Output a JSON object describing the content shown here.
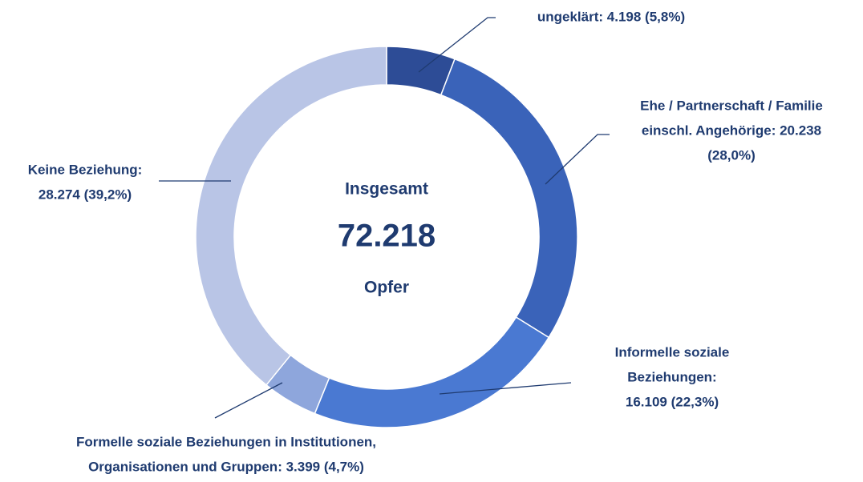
{
  "chart_data": {
    "type": "donut",
    "labels": [
      [
        "ungeklärt: 4.198 (5,8%)"
      ],
      [
        "Ehe / Partnerschaft / Familie",
        "einschl. Angehörige: 20.238",
        "(28,0%)"
      ],
      [
        "Informelle soziale",
        "Beziehungen:",
        "16.109 (22,3%)"
      ],
      [
        "Formelle soziale Beziehungen in Institutionen,",
        "Organisationen und Gruppen: 3.399 (4,7%)"
      ],
      [
        "Keine Beziehung:",
        "28.274 (39,2%)"
      ]
    ],
    "values": [
      4198,
      20238,
      16109,
      3399,
      28274
    ],
    "colors": [
      "#2d4c96",
      "#3a63b9",
      "#4a79d2",
      "#8ea6dc",
      "#b9c5e6"
    ],
    "center": {
      "title": "Insgesamt",
      "total": {
        "value": 72218,
        "label": "72.218"
      },
      "unit": "Opfer"
    }
  }
}
